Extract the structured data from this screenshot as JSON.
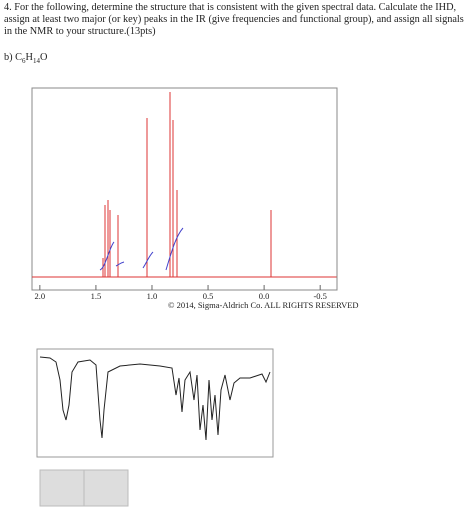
{
  "question": {
    "text": "4. For the following, determine the structure that is consistent with the given spectral data.  Calculate the IHD, assign at least two major (or key) peaks in the IR (give frequencies and functional group), and assign all signals in the NMR to your structure.(13pts)",
    "part_label": "b) C",
    "formula_c": "6",
    "formula_h": "H",
    "formula_h_count": "14",
    "formula_o": "O"
  },
  "nmr": {
    "xlim": [
      2.07,
      -0.65
    ],
    "xticks": [
      {
        "value": 2.0,
        "label": "2.0"
      },
      1.5,
      {
        "value": 1.0,
        "label": "1.0"
      },
      0.5,
      {
        "value": 0.0,
        "label": "0.0"
      },
      -0.5
    ],
    "copyright": "© 2014, Sigma-Aldrich Co. ALL RIGHTS RESERVED"
  }
}
